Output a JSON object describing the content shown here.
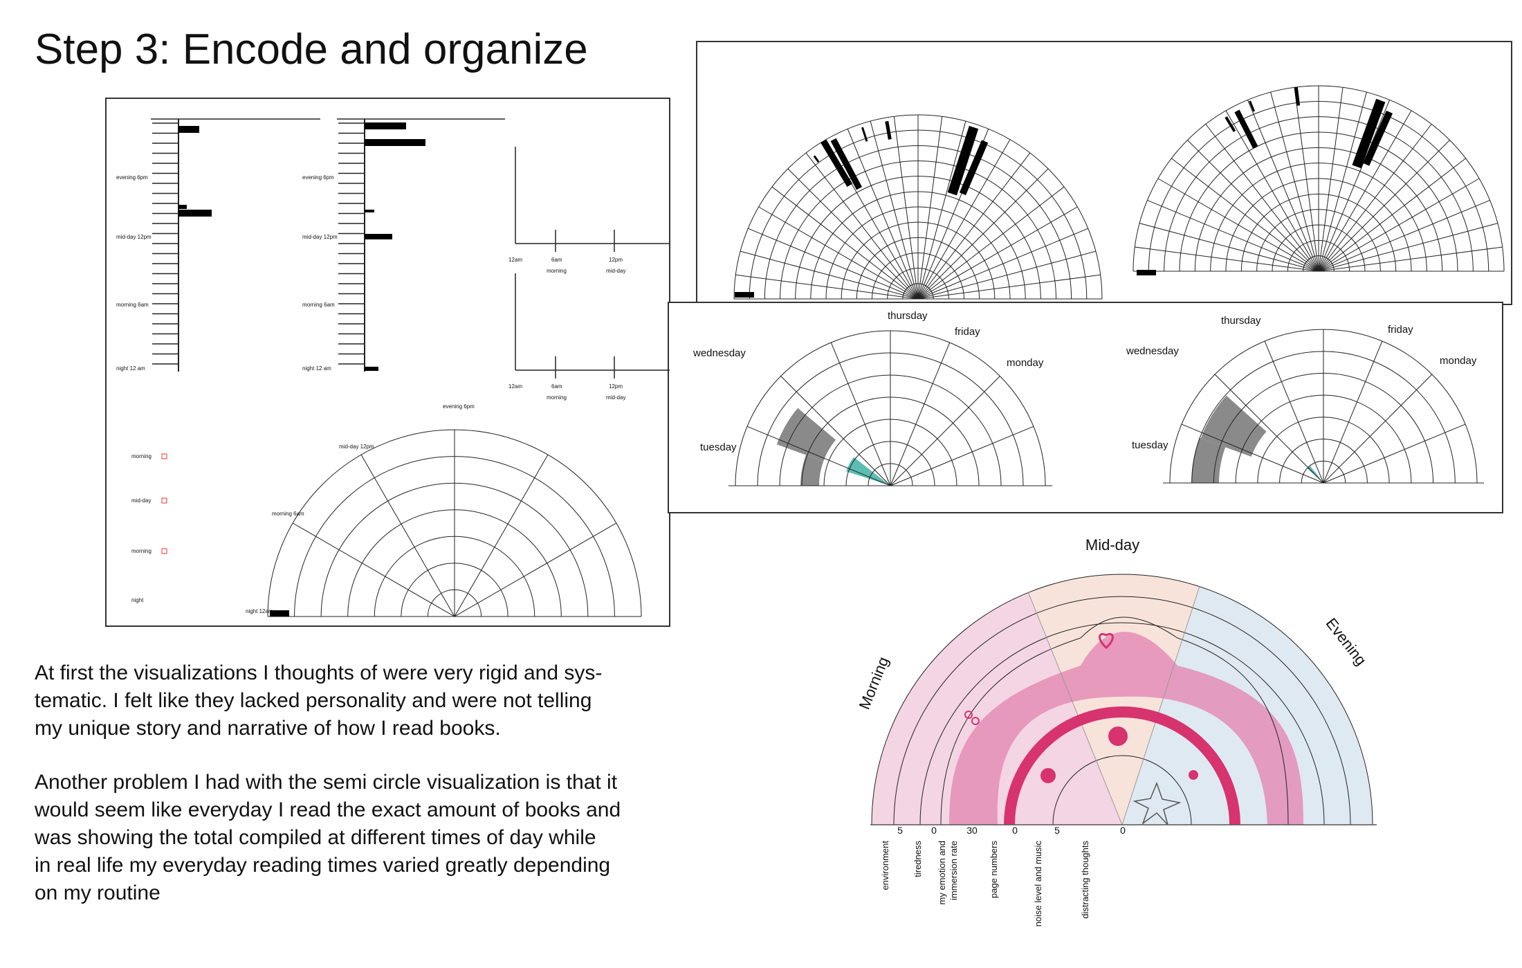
{
  "header": {
    "title": "Step 3: Encode and organize"
  },
  "body": {
    "paragraphs": [
      [
        "At first the visualizations I thoughts of were very rigid and sys-",
        "tematic. I felt like they lacked personality and were not telling",
        "my unique story and narrative of how I read books."
      ],
      [
        "Another problem I had with the semi circle visualization is that it",
        "would seem like everyday I read the exact amount of books and",
        "was showing the total compiled at different times of day while",
        "in real life my everyday reading times varied greatly depending",
        "on my routine"
      ]
    ]
  },
  "sketch_1": {
    "time_labels": [
      "evening 6pm",
      "mid-day 12pm",
      "morning 6am",
      "night 12 am"
    ],
    "line_chart_labels": [
      "12am",
      "6am",
      "12pm",
      "morning",
      "mid-day"
    ],
    "semicircle_labels": [
      "evening 6pm",
      "mid-day 12pm",
      "morning 6am",
      "night 12am"
    ],
    "legend": [
      "morning",
      "mid-day",
      "morning",
      "night"
    ]
  },
  "sketch_3": {
    "left": {
      "days": [
        "thursday",
        "friday",
        "monday",
        "wednesday",
        "tuesday"
      ]
    },
    "right": {
      "days": [
        "thursday",
        "friday",
        "monday",
        "wednesday",
        "tuesday"
      ]
    }
  },
  "final_sketch": {
    "sections": [
      "Morning",
      "Mid-day",
      "Evening"
    ],
    "scale_values": [
      "5",
      "0",
      "30",
      "0",
      "5",
      "0"
    ],
    "axis_labels": [
      [
        "environment"
      ],
      [
        "tiredness"
      ],
      [
        "my emotion and",
        "immersion rate"
      ],
      [
        "page numbers"
      ],
      [
        "noise level and music"
      ],
      [
        "distracting thoughts"
      ]
    ]
  }
}
